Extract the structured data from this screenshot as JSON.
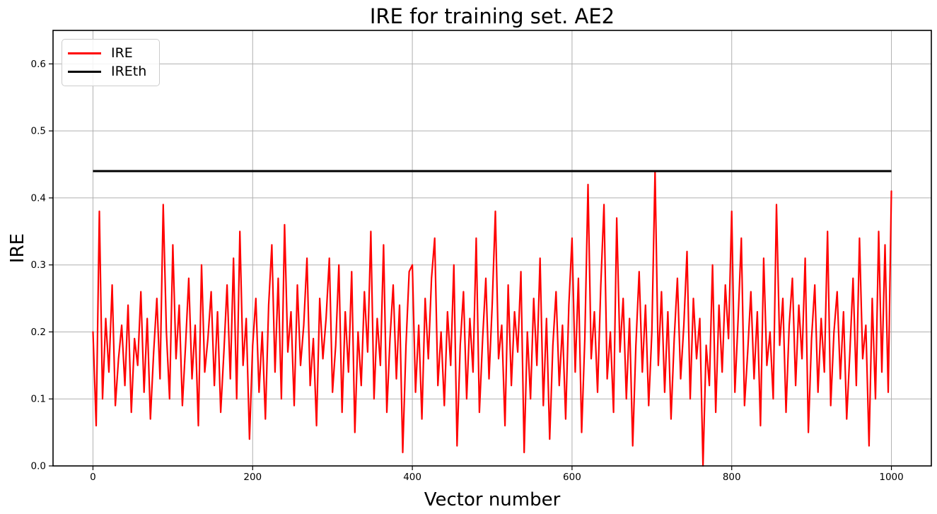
{
  "chart_data": {
    "type": "line",
    "title": "IRE for training set. AE2",
    "xlabel": "Vector number",
    "ylabel": "IRE",
    "xlim": [
      -50,
      1050
    ],
    "ylim": [
      0.0,
      0.65
    ],
    "x_ticks": [
      0,
      200,
      400,
      600,
      800,
      1000
    ],
    "x_tick_labels": [
      "0",
      "200",
      "400",
      "600",
      "800",
      "1000"
    ],
    "y_ticks": [
      0.0,
      0.1,
      0.2,
      0.3,
      0.4,
      0.5,
      0.6
    ],
    "y_tick_labels": [
      "0.0",
      "0.1",
      "0.2",
      "0.3",
      "0.4",
      "0.5",
      "0.6"
    ],
    "grid": true,
    "colors": {
      "background": "#ffffff",
      "grid": "#b0b0b0",
      "spine": "#000000",
      "tick_label": "#000000"
    },
    "legend": {
      "position": "upper-left",
      "entries": [
        {
          "label": "IRE",
          "color": "#ff0000"
        },
        {
          "label": "IREth",
          "color": "#000000"
        }
      ]
    },
    "series": [
      {
        "name": "IRE",
        "color": "#ff0000",
        "line_width": 2.2,
        "x_start": 0,
        "x_step": 4,
        "sampling_note": "noisy 0-1000 series sampled every 4th vector",
        "values": [
          0.2,
          0.06,
          0.38,
          0.1,
          0.22,
          0.14,
          0.27,
          0.09,
          0.16,
          0.21,
          0.12,
          0.24,
          0.08,
          0.19,
          0.15,
          0.26,
          0.11,
          0.22,
          0.07,
          0.17,
          0.25,
          0.13,
          0.39,
          0.2,
          0.1,
          0.33,
          0.16,
          0.24,
          0.09,
          0.18,
          0.28,
          0.13,
          0.21,
          0.06,
          0.3,
          0.14,
          0.19,
          0.26,
          0.12,
          0.23,
          0.08,
          0.17,
          0.27,
          0.13,
          0.31,
          0.1,
          0.35,
          0.15,
          0.22,
          0.04,
          0.18,
          0.25,
          0.11,
          0.2,
          0.07,
          0.24,
          0.33,
          0.14,
          0.28,
          0.1,
          0.36,
          0.17,
          0.23,
          0.09,
          0.27,
          0.15,
          0.21,
          0.31,
          0.12,
          0.19,
          0.06,
          0.25,
          0.16,
          0.22,
          0.31,
          0.11,
          0.18,
          0.3,
          0.08,
          0.23,
          0.14,
          0.29,
          0.05,
          0.2,
          0.12,
          0.26,
          0.17,
          0.35,
          0.1,
          0.22,
          0.15,
          0.33,
          0.08,
          0.19,
          0.27,
          0.13,
          0.24,
          0.02,
          0.18,
          0.29,
          0.3,
          0.11,
          0.21,
          0.07,
          0.25,
          0.16,
          0.28,
          0.34,
          0.12,
          0.2,
          0.09,
          0.23,
          0.15,
          0.3,
          0.03,
          0.18,
          0.26,
          0.1,
          0.22,
          0.14,
          0.34,
          0.08,
          0.19,
          0.28,
          0.13,
          0.24,
          0.38,
          0.16,
          0.21,
          0.06,
          0.27,
          0.12,
          0.23,
          0.17,
          0.29,
          0.02,
          0.2,
          0.1,
          0.25,
          0.15,
          0.31,
          0.09,
          0.22,
          0.04,
          0.18,
          0.26,
          0.12,
          0.21,
          0.07,
          0.24,
          0.34,
          0.14,
          0.28,
          0.05,
          0.19,
          0.42,
          0.16,
          0.23,
          0.11,
          0.27,
          0.39,
          0.13,
          0.2,
          0.08,
          0.37,
          0.17,
          0.25,
          0.1,
          0.22,
          0.03,
          0.18,
          0.29,
          0.14,
          0.24,
          0.09,
          0.2,
          0.44,
          0.15,
          0.26,
          0.11,
          0.23,
          0.07,
          0.19,
          0.28,
          0.13,
          0.21,
          0.32,
          0.1,
          0.25,
          0.16,
          0.22,
          0.0,
          0.18,
          0.12,
          0.3,
          0.08,
          0.24,
          0.14,
          0.27,
          0.19,
          0.38,
          0.11,
          0.22,
          0.34,
          0.09,
          0.17,
          0.26,
          0.13,
          0.23,
          0.06,
          0.31,
          0.15,
          0.2,
          0.1,
          0.39,
          0.18,
          0.25,
          0.08,
          0.21,
          0.28,
          0.12,
          0.24,
          0.16,
          0.31,
          0.05,
          0.19,
          0.27,
          0.11,
          0.22,
          0.14,
          0.35,
          0.09,
          0.2,
          0.26,
          0.13,
          0.23,
          0.07,
          0.17,
          0.28,
          0.12,
          0.34,
          0.16,
          0.21,
          0.03,
          0.25,
          0.1,
          0.35,
          0.14,
          0.33,
          0.11,
          0.41
        ]
      },
      {
        "name": "IREth",
        "color": "#000000",
        "line_width": 3,
        "style": "hline",
        "value": 0.44,
        "x_range": [
          0,
          1000
        ]
      }
    ]
  }
}
